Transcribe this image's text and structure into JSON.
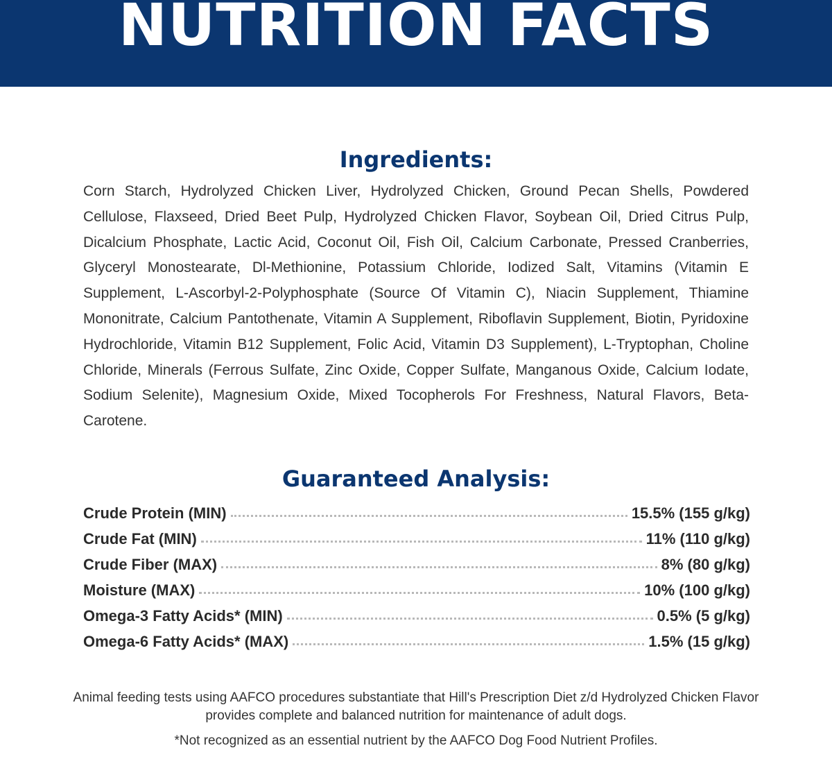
{
  "header": {
    "title": "NUTRITION FACTS"
  },
  "ingredients": {
    "heading": "Ingredients:",
    "text": "Corn Starch, Hydrolyzed Chicken Liver, Hydrolyzed Chicken, Ground Pecan Shells, Powdered Cellulose, Flaxseed, Dried Beet Pulp, Hydrolyzed Chicken Flavor, Soybean Oil, Dried Citrus Pulp, Dicalcium Phosphate, Lactic Acid, Coconut Oil, Fish Oil, Calcium Carbonate, Pressed Cranberries, Glyceryl Monostearate, Dl-Methionine, Potassium Chloride, Iodized Salt, Vitamins (Vitamin E Supplement, L-Ascorbyl-2-Polyphosphate (Source Of Vitamin C), Niacin Supplement, Thiamine Mononitrate, Calcium Pantothenate, Vitamin A Supplement, Riboflavin Supplement, Biotin, Pyridoxine Hydrochloride, Vitamin B12 Supplement, Folic Acid, Vitamin D3 Supplement), L-Tryptophan, Choline Chloride, Minerals (Ferrous Sulfate, Zinc Oxide, Copper Sulfate, Manganous Oxide, Calcium Iodate, Sodium Selenite), Magnesium Oxide, Mixed Tocopherols For Freshness, Natural Flavors, Beta-Carotene."
  },
  "analysis": {
    "heading": "Guaranteed Analysis:",
    "rows": [
      {
        "label": "Crude Protein (MIN)",
        "value": "15.5% (155 g/kg)"
      },
      {
        "label": "Crude Fat (MIN)",
        "value": "11% (110 g/kg)"
      },
      {
        "label": "Crude Fiber (MAX)",
        "value": "8% (80 g/kg)"
      },
      {
        "label": "Moisture (MAX)",
        "value": "10% (100 g/kg)"
      },
      {
        "label": "Omega-3 Fatty Acids* (MIN)",
        "value": "0.5% (5 g/kg)"
      },
      {
        "label": "Omega-6 Fatty Acids* (MAX)",
        "value": "1.5% (15 g/kg)"
      }
    ]
  },
  "footer": {
    "aafco_statement": "Animal feeding tests using AAFCO procedures substantiate that Hill's Prescription Diet z/d Hydrolyzed Chicken Flavor provides complete and balanced nutrition for maintenance of adult dogs.",
    "asterisk_note": "*Not recognized as an essential nutrient by the AAFCO Dog Food Nutrient Profiles."
  },
  "colors": {
    "banner_background": "#0b3670",
    "heading_text": "#0b3670",
    "body_text": "#333333"
  }
}
